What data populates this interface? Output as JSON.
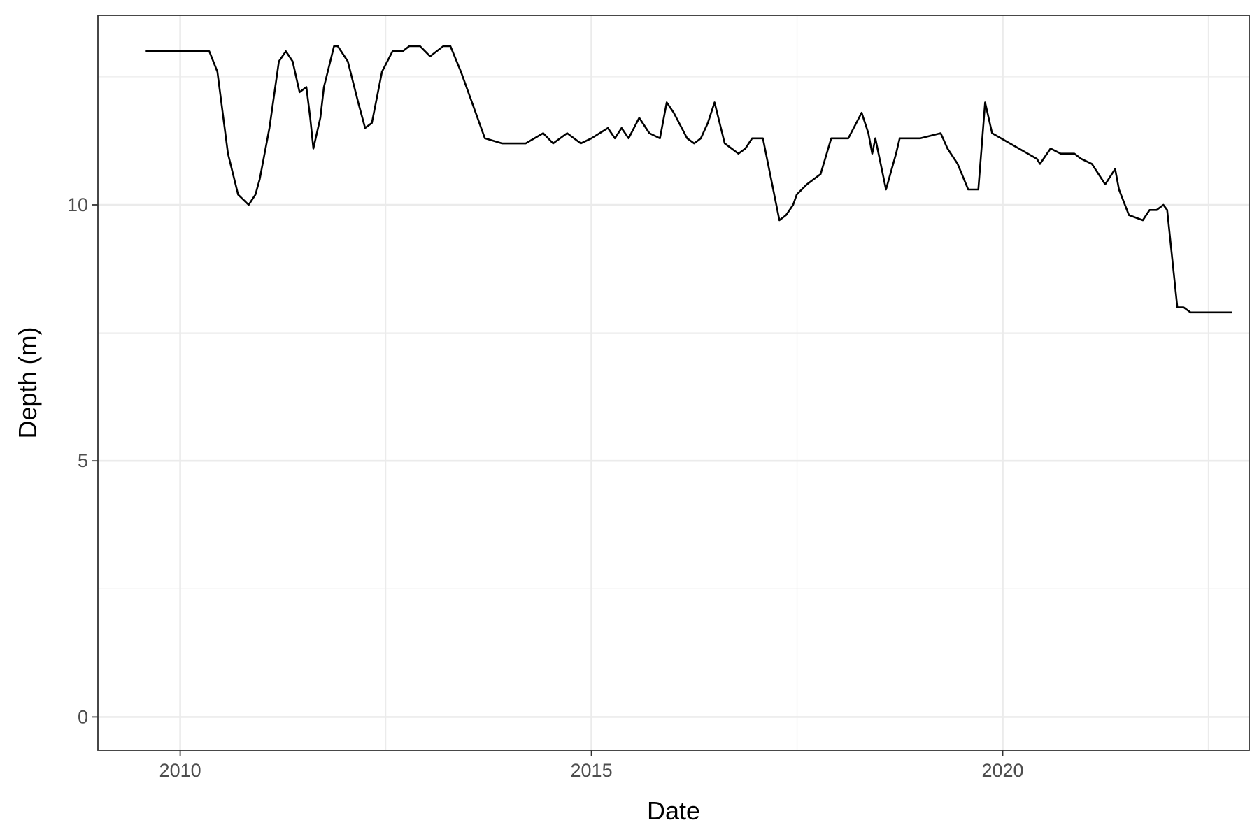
{
  "chart_data": {
    "type": "line",
    "title": "",
    "xlabel": "Date",
    "ylabel": "Depth (m)",
    "x_ticks": [
      "2010",
      "2015",
      "2020"
    ],
    "y_ticks": [
      "0",
      "5",
      "10"
    ],
    "xlim": [
      "2009-01-01",
      "2022-12-31"
    ],
    "ylim": [
      -0.65,
      13.7
    ],
    "grid": true,
    "legend": "none",
    "colors": {
      "line": "#000000",
      "grid": "#ebebeb",
      "panel_border": "#333333",
      "background": "#ffffff"
    },
    "series": [
      {
        "x": [
          "2009-08-01",
          "2010-05-10",
          "2010-06-15",
          "2010-08-01",
          "2010-09-15",
          "2010-11-01",
          "2010-12-01",
          "2010-12-20",
          "2011-02-01",
          "2011-03-15",
          "2011-04-15",
          "2011-05-15",
          "2011-06-15",
          "2011-07-15",
          "2011-08-01",
          "2011-08-15",
          "2011-09-15",
          "2011-10-01",
          "2011-11-15",
          "2011-12-01",
          "2012-01-15",
          "2012-03-01",
          "2012-04-01",
          "2012-05-01",
          "2012-06-15",
          "2012-08-01",
          "2012-09-15",
          "2012-10-15",
          "2012-12-01",
          "2013-01-15",
          "2013-03-15",
          "2013-04-15",
          "2013-06-01",
          "2013-09-15",
          "2013-12-01",
          "2014-03-15",
          "2014-06-01",
          "2014-07-15",
          "2014-09-15",
          "2014-11-15",
          "2015-01-01",
          "2015-03-15",
          "2015-04-15",
          "2015-05-15",
          "2015-06-15",
          "2015-08-01",
          "2015-09-15",
          "2015-11-01",
          "2015-12-01",
          "2016-01-01",
          "2016-03-01",
          "2016-04-01",
          "2016-05-01",
          "2016-06-01",
          "2016-07-01",
          "2016-08-15",
          "2016-10-15",
          "2016-11-15",
          "2016-12-15",
          "2017-02-01",
          "2017-04-15",
          "2017-05-15",
          "2017-06-15",
          "2017-07-01",
          "2017-08-15",
          "2017-10-15",
          "2017-12-01",
          "2018-02-15",
          "2018-04-15",
          "2018-05-15",
          "2018-06-01",
          "2018-06-15",
          "2018-08-01",
          "2018-09-15",
          "2018-10-01",
          "2018-11-15",
          "2019-01-01",
          "2019-04-01",
          "2019-05-01",
          "2019-06-15",
          "2019-08-01",
          "2019-09-15",
          "2019-10-15",
          "2019-11-15",
          "2020-06-01",
          "2020-06-15",
          "2020-08-01",
          "2020-09-15",
          "2020-11-15",
          "2020-12-15",
          "2021-02-01",
          "2021-04-01",
          "2021-05-15",
          "2021-06-01",
          "2021-07-15",
          "2021-09-15",
          "2021-10-15",
          "2021-11-15",
          "2021-12-15",
          "2022-01-01",
          "2022-02-15",
          "2022-03-15",
          "2022-04-15",
          "2022-05-15",
          "2022-06-15",
          "2022-08-01",
          "2022-08-15",
          "2022-09-01",
          "2022-09-15",
          "2022-10-01",
          "2022-10-15"
        ],
        "y": [
          13.0,
          13.0,
          12.6,
          11.0,
          10.2,
          10.0,
          10.2,
          10.5,
          11.5,
          12.8,
          13.0,
          12.8,
          12.2,
          12.3,
          11.7,
          11.1,
          11.7,
          12.3,
          13.1,
          13.1,
          12.8,
          12.0,
          11.5,
          11.6,
          12.6,
          13.0,
          13.0,
          13.1,
          13.1,
          12.9,
          13.1,
          13.1,
          12.6,
          11.3,
          11.2,
          11.2,
          11.4,
          11.2,
          11.4,
          11.2,
          11.3,
          11.5,
          11.3,
          11.5,
          11.3,
          11.7,
          11.4,
          11.3,
          12.0,
          11.8,
          11.3,
          11.2,
          11.3,
          11.6,
          12.0,
          11.2,
          11.0,
          11.1,
          11.3,
          11.3,
          9.7,
          9.8,
          10.0,
          10.2,
          10.4,
          10.6,
          11.3,
          11.3,
          11.8,
          11.4,
          11.0,
          11.3,
          10.3,
          11.0,
          11.3,
          11.3,
          11.3,
          11.4,
          11.1,
          10.8,
          10.3,
          10.3,
          12.0,
          11.4,
          10.9,
          10.8,
          11.1,
          11.0,
          11.0,
          10.9,
          10.8,
          10.4,
          10.7,
          10.3,
          9.8,
          9.7,
          9.9,
          9.9,
          10.0,
          9.9,
          8.0,
          8.0,
          7.9,
          7.9,
          7.9,
          7.9,
          7.9,
          7.9,
          7.9,
          7.9,
          7.9
        ]
      }
    ]
  }
}
